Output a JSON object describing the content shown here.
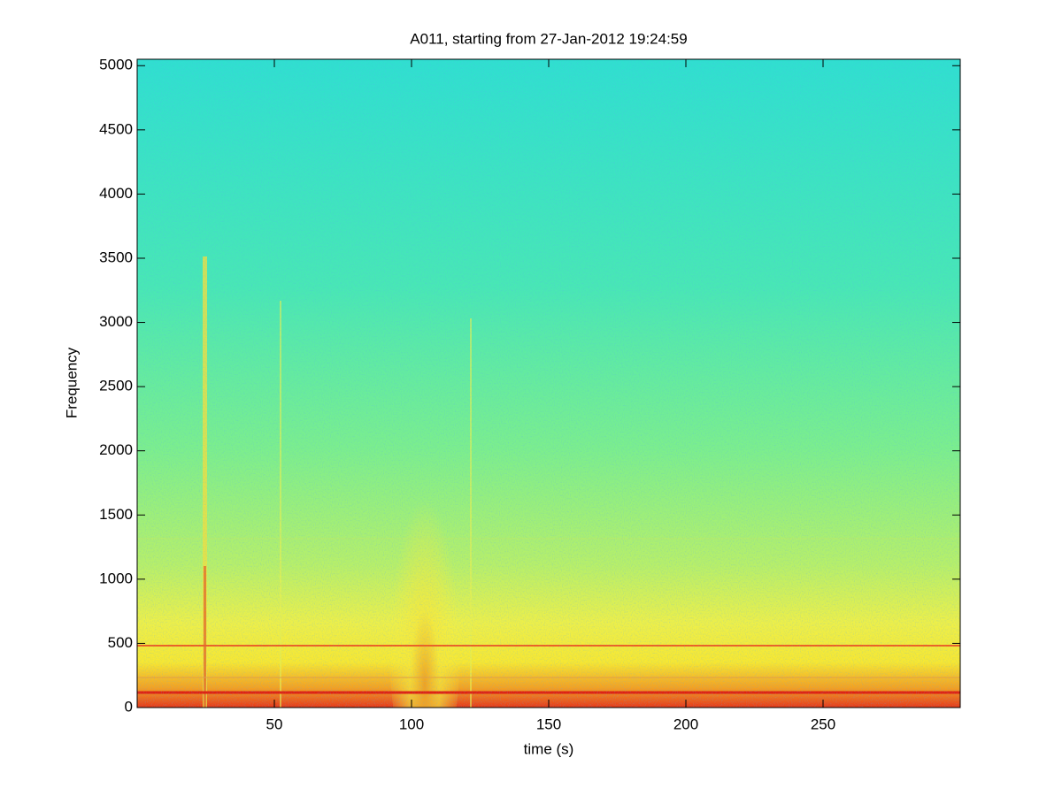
{
  "chart_data": {
    "type": "spectrogram",
    "title": "A011, starting from 27-Jan-2012 19:24:59",
    "x_label": "time (s)",
    "y_label": "Frequency",
    "xlim": [
      0,
      300
    ],
    "xticks": [
      50,
      100,
      150,
      200,
      250
    ],
    "ylim": [
      0,
      5050
    ],
    "yticks": [
      0,
      500,
      1000,
      1500,
      2000,
      2500,
      3000,
      3500,
      4000,
      4500,
      5000
    ]
  }
}
